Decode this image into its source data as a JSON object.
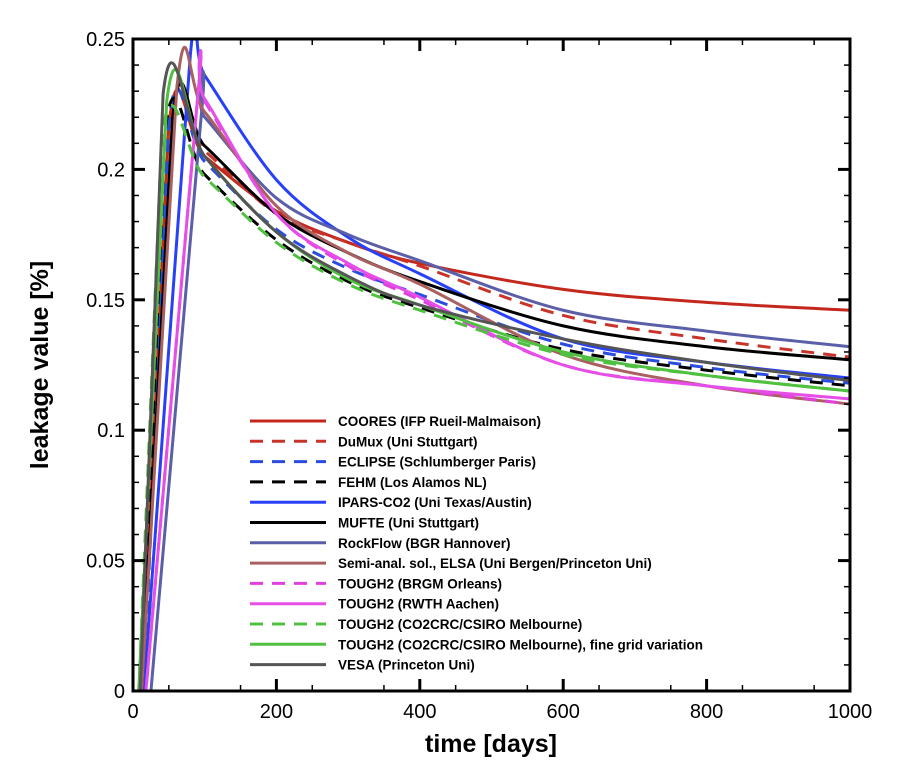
{
  "chart_data": {
    "type": "line",
    "title": "",
    "xlabel": "time [days]",
    "ylabel": "leakage value [%]",
    "xlim": [
      0,
      1000
    ],
    "ylim": [
      0,
      0.25
    ],
    "xticks": [
      0,
      200,
      400,
      600,
      800,
      1000
    ],
    "xtick_labels": [
      "0",
      "200",
      "400",
      "600",
      "800",
      "1000"
    ],
    "yticks": [
      0,
      0.05,
      0.1,
      0.15,
      0.2,
      0.25
    ],
    "ytick_labels": [
      "0",
      "0.05",
      "0.1",
      "0.15",
      "0.2",
      "0.25"
    ],
    "grid": false,
    "legend_position": "lower-center",
    "series": [
      {
        "name": "COORES (IFP Rueil-Malmaison)",
        "color": "#c4281c",
        "dash": false,
        "x": [
          0,
          12,
          50,
          100,
          200,
          300,
          400,
          600,
          800,
          1000
        ],
        "y": [
          0,
          0,
          0.217,
          0.205,
          0.184,
          0.172,
          0.164,
          0.154,
          0.149,
          0.146
        ]
      },
      {
        "name": "DuMux (Uni Stuttgart)",
        "color": "#c8342a",
        "dash": true,
        "x": [
          0,
          12,
          50,
          100,
          200,
          300,
          400,
          600,
          800,
          1000
        ],
        "y": [
          0,
          0,
          0.216,
          0.207,
          0.183,
          0.172,
          0.163,
          0.144,
          0.135,
          0.128
        ]
      },
      {
        "name": "ECLIPSE (Schlumberger Paris)",
        "color": "#2a4de0",
        "dash": true,
        "x": [
          0,
          15,
          50,
          100,
          200,
          300,
          400,
          600,
          800,
          1000
        ],
        "y": [
          0,
          0,
          0.218,
          0.203,
          0.177,
          0.162,
          0.152,
          0.133,
          0.124,
          0.118
        ]
      },
      {
        "name": "FEHM (Los Alamos NL)",
        "color": "#000000",
        "dash": true,
        "x": [
          0,
          12,
          45,
          100,
          200,
          300,
          400,
          600,
          800,
          1000
        ],
        "y": [
          0,
          0,
          0.215,
          0.198,
          0.173,
          0.157,
          0.147,
          0.131,
          0.123,
          0.117
        ]
      },
      {
        "name": "IPARS-CO2 (Uni Texas/Austin)",
        "color": "#2840f8",
        "dash": false,
        "x": [
          0,
          15,
          80,
          100,
          200,
          300,
          400,
          600,
          800,
          1000
        ],
        "y": [
          0,
          0,
          0.244,
          0.236,
          0.196,
          0.174,
          0.16,
          0.135,
          0.126,
          0.12
        ]
      },
      {
        "name": "MUFTE (Uni Stuttgart)",
        "color": "#000000",
        "dash": false,
        "x": [
          0,
          12,
          55,
          100,
          200,
          300,
          400,
          600,
          800,
          1000
        ],
        "y": [
          0,
          0,
          0.219,
          0.209,
          0.183,
          0.168,
          0.157,
          0.14,
          0.132,
          0.127
        ]
      },
      {
        "name": "RockFlow (BGR Hannover)",
        "color": "#5a5fa8",
        "dash": false,
        "x": [
          0,
          25,
          95,
          100,
          200,
          300,
          400,
          600,
          800,
          1000
        ],
        "y": [
          0,
          0,
          0.22,
          0.22,
          0.189,
          0.175,
          0.165,
          0.146,
          0.138,
          0.132
        ]
      },
      {
        "name": "Semi-anal. sol., ELSA (Uni Bergen/Princeton Uni)",
        "color": "#a86060",
        "dash": false,
        "x": [
          0,
          12,
          61,
          100,
          200,
          300,
          400,
          600,
          800,
          1000
        ],
        "y": [
          0,
          0,
          0.231,
          0.222,
          0.186,
          0.168,
          0.156,
          0.129,
          0.117,
          0.11
        ]
      },
      {
        "name": "TOUGH2 (BRGM Orleans)",
        "color": "#e040e0",
        "dash": true,
        "x": [
          0,
          18,
          90,
          100,
          200,
          300,
          400,
          600,
          800,
          1000
        ],
        "y": [
          0,
          0,
          0.227,
          0.226,
          0.183,
          0.163,
          0.15,
          0.125,
          0.117,
          0.11
        ]
      },
      {
        "name": "TOUGH2 (RWTH Aachen)",
        "color": "#e64ee8",
        "dash": false,
        "x": [
          0,
          18,
          90,
          100,
          200,
          300,
          400,
          600,
          800,
          1000
        ],
        "y": [
          0,
          0,
          0.227,
          0.227,
          0.183,
          0.164,
          0.151,
          0.125,
          0.117,
          0.112
        ]
      },
      {
        "name": "TOUGH2 (CO2CRC/CSIRO Melbourne)",
        "color": "#50c040",
        "dash": true,
        "x": [
          0,
          8,
          40,
          100,
          200,
          300,
          400,
          600,
          800,
          1000
        ],
        "y": [
          0,
          0,
          0.212,
          0.197,
          0.172,
          0.156,
          0.146,
          0.129,
          0.121,
          0.115
        ]
      },
      {
        "name": "TOUGH2 (CO2CRC/CSIRO Melbourne), fine grid variation",
        "color": "#50c040",
        "dash": false,
        "x": [
          0,
          8,
          47,
          100,
          200,
          300,
          400,
          600,
          800,
          1000
        ],
        "y": [
          0,
          0,
          0.226,
          0.205,
          0.176,
          0.158,
          0.148,
          0.13,
          0.121,
          0.115
        ]
      },
      {
        "name": "VESA (Princeton Uni)",
        "color": "#555555",
        "dash": false,
        "x": [
          0,
          10,
          42,
          100,
          200,
          300,
          400,
          600,
          800,
          1000
        ],
        "y": [
          0,
          0,
          0.229,
          0.205,
          0.176,
          0.159,
          0.148,
          0.135,
          0.126,
          0.119
        ]
      }
    ]
  }
}
